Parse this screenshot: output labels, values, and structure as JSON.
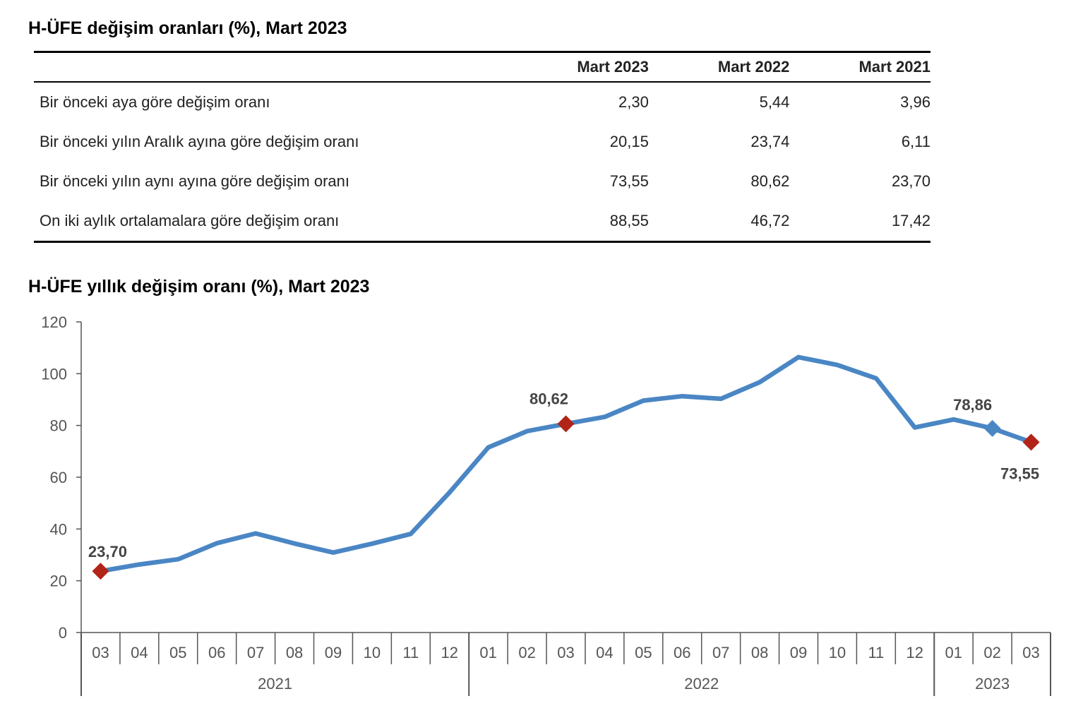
{
  "table_title": "H-ÜFE değişim oranları (%), Mart 2023",
  "table": {
    "headers": [
      "",
      "Mart 2023",
      "Mart 2022",
      "Mart 2021"
    ],
    "rows": [
      {
        "label": "Bir önceki aya göre değişim oranı",
        "values": [
          "2,30",
          "5,44",
          "3,96"
        ]
      },
      {
        "label": "Bir önceki yılın Aralık ayına göre değişim oranı",
        "values": [
          "20,15",
          "23,74",
          "6,11"
        ]
      },
      {
        "label": "Bir önceki yılın aynı ayına göre değişim oranı",
        "values": [
          "73,55",
          "80,62",
          "23,70"
        ]
      },
      {
        "label": "On iki aylık ortalamalara göre değişim oranı",
        "values": [
          "88,55",
          "46,72",
          "17,42"
        ]
      }
    ]
  },
  "chart_title": "H-ÜFE yıllık değişim oranı (%), Mart 2023",
  "chart_data": {
    "type": "line",
    "categories": [
      "03",
      "04",
      "05",
      "06",
      "07",
      "08",
      "09",
      "10",
      "11",
      "12",
      "01",
      "02",
      "03",
      "04",
      "05",
      "06",
      "07",
      "08",
      "09",
      "10",
      "11",
      "12",
      "01",
      "02",
      "03"
    ],
    "year_groups": [
      {
        "label": "2021",
        "count": 10
      },
      {
        "label": "2022",
        "count": 12
      },
      {
        "label": "2023",
        "count": 3
      }
    ],
    "series": [
      {
        "values": [
          23.7,
          26.3,
          28.3,
          34.5,
          38.3,
          34.4,
          30.9,
          34.3,
          38.1,
          54.1,
          71.5,
          77.8,
          80.62,
          83.3,
          89.6,
          91.3,
          90.3,
          96.7,
          106.4,
          103.4,
          98.2,
          79.2,
          82.3,
          78.86,
          73.55
        ]
      }
    ],
    "ylim": [
      0,
      120
    ],
    "yticks": [
      0,
      20,
      40,
      60,
      80,
      100,
      120
    ],
    "highlighted_points": [
      {
        "index": 0,
        "label": "23,70",
        "marker": "diamond",
        "color": "#b22418"
      },
      {
        "index": 12,
        "label": "80,62",
        "marker": "diamond",
        "color": "#b22418"
      },
      {
        "index": 23,
        "label": "78,86",
        "marker": "diamond",
        "color": "#4a86c4"
      },
      {
        "index": 24,
        "label": "73,55",
        "marker": "diamond",
        "color": "#b22418"
      }
    ],
    "line_color": "#4a86c4",
    "grid": false,
    "legend": "none"
  }
}
